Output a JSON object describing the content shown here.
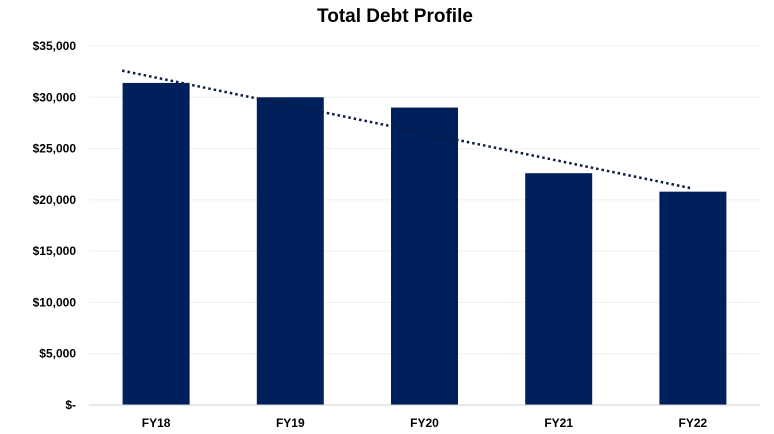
{
  "chart_data": {
    "type": "bar",
    "title": "Total Debt Profile",
    "xlabel": "",
    "ylabel": "",
    "categories": [
      "FY18",
      "FY19",
      "FY20",
      "FY21",
      "FY22"
    ],
    "values": [
      31400,
      30000,
      29000,
      22600,
      20800
    ],
    "ylim": [
      0,
      35000
    ],
    "yticks": [
      0,
      5000,
      10000,
      15000,
      20000,
      25000,
      30000,
      35000
    ],
    "ytick_labels": [
      "$-",
      "$5,000",
      "$10,000",
      "$15,000",
      "$20,000",
      "$25,000",
      "$30,000",
      "$35,000"
    ],
    "trendline": {
      "type": "linear",
      "style": "dotted",
      "start": 32600,
      "end": 21100
    },
    "grid": true,
    "legend": "none",
    "colors": {
      "bar": "#00205b",
      "trendline": "#0d1b45",
      "grid": "#efefef",
      "axis": "#d0d0d0"
    }
  }
}
